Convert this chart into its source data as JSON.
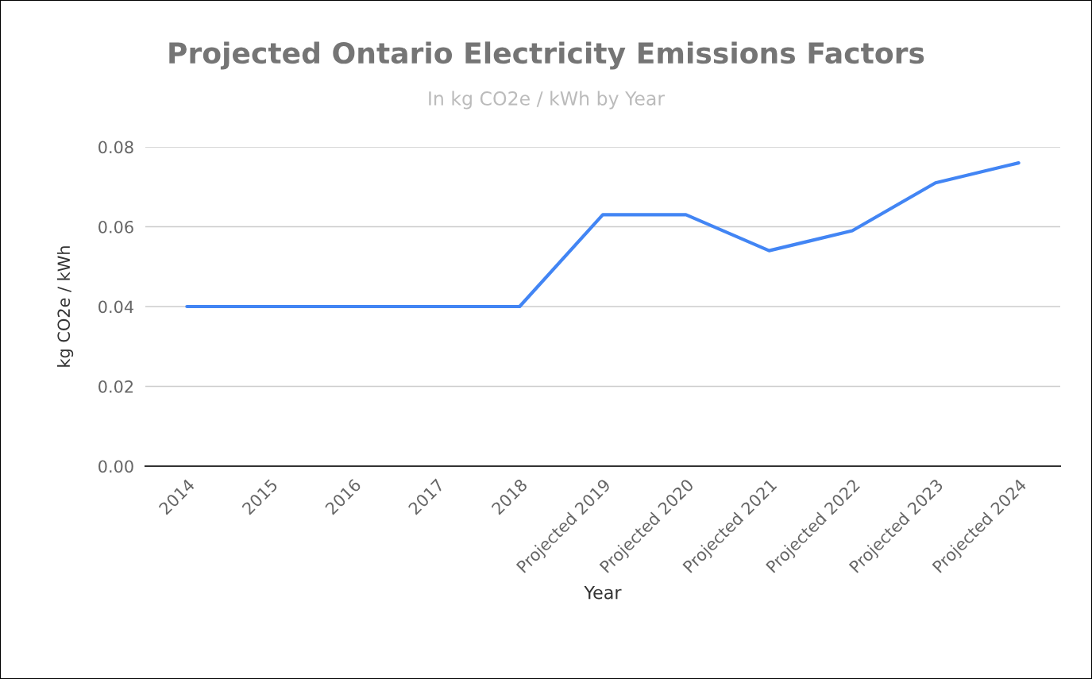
{
  "chart_data": {
    "type": "line",
    "title": "Projected Ontario Electricity Emissions Factors",
    "subtitle": "In kg CO2e / kWh by Year",
    "xlabel": "Year",
    "ylabel": "kg CO2e / kWh",
    "categories": [
      "2014",
      "2015",
      "2016",
      "2017",
      "2018",
      "Projected 2019",
      "Projected 2020",
      "Projected 2021",
      "Projected 2022",
      "Projected 2023",
      "Projected 2024"
    ],
    "series": [
      {
        "color": "#4285f4",
        "values": [
          0.04,
          0.04,
          0.04,
          0.04,
          0.04,
          0.063,
          0.063,
          0.054,
          0.059,
          0.071,
          0.076
        ]
      }
    ],
    "ylim": [
      0,
      0.08
    ],
    "yticks": [
      {
        "value": 0,
        "label": "0.00"
      },
      {
        "value": 0.02,
        "label": "0.02"
      },
      {
        "value": 0.04,
        "label": "0.04"
      },
      {
        "value": 0.06,
        "label": "0.06"
      },
      {
        "value": 0.08,
        "label": "0.08"
      }
    ],
    "grid": "y",
    "legend": false,
    "marker": "none",
    "line_style": "solid"
  }
}
